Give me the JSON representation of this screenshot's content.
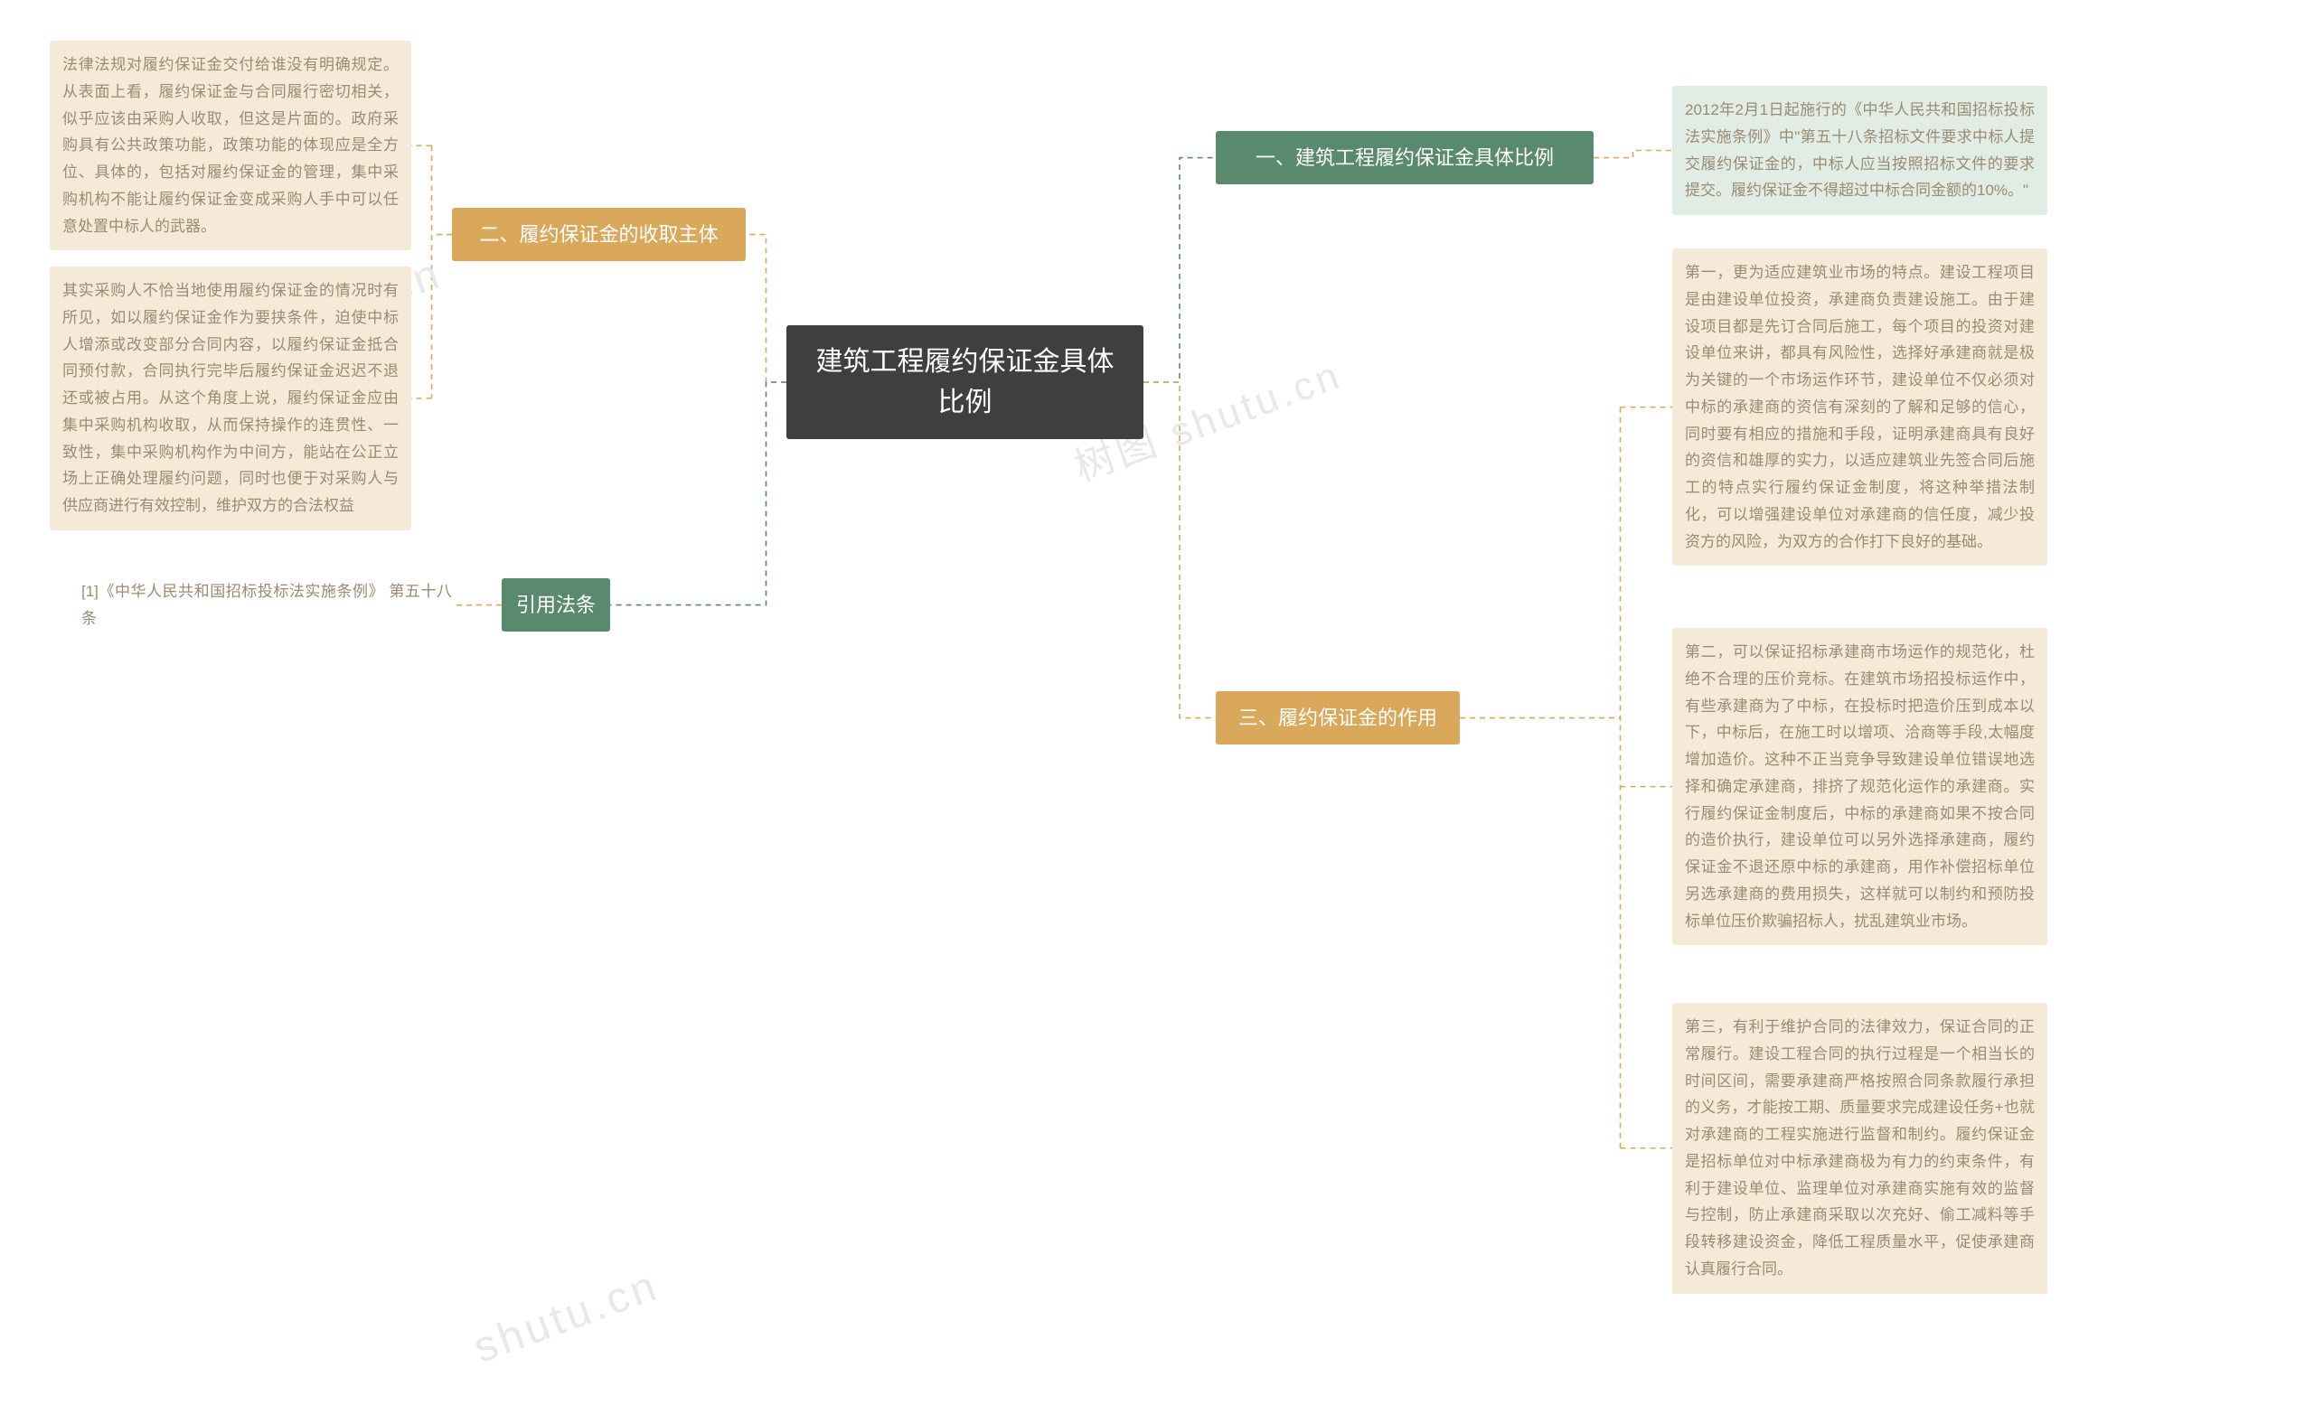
{
  "center": {
    "title": "建筑工程履约保证金具体\n比例"
  },
  "right": {
    "branch1": {
      "label": "一、建筑工程履约保证金具体比例",
      "detail": "2012年2月1日起施行的《中华人民共和国招标投标法实施条例》中\"第五十八条招标文件要求中标人提交履约保证金的，中标人应当按照招标文件的要求提交。履约保证金不得超过中标合同金额的10%。\""
    },
    "branch3": {
      "label": "三、履约保证金的作用",
      "detail1": "第一，更为适应建筑业市场的特点。建设工程项目是由建设单位投资，承建商负责建设施工。由于建设项目都是先订合同后施工，每个项目的投资对建设单位来讲，都具有风险性，选择好承建商就是极为关键的一个市场运作环节，建设单位不仅必须对中标的承建商的资信有深刻的了解和足够的信心，同时要有相应的措施和手段，证明承建商具有良好的资信和雄厚的实力，以适应建筑业先签合同后施工的特点实行履约保证金制度，将这种举措法制化，可以增强建设单位对承建商的信任度，减少投资方的风险，为双方的合作打下良好的基础。",
      "detail2": "第二，可以保证招标承建商市场运作的规范化，杜绝不合理的压价竞标。在建筑市场招投标运作中，有些承建商为了中标，在投标时把造价压到成本以下，中标后，在施工时以增项、洽商等手段,太幅度增加造价。这种不正当竞争导致建设单位错误地选择和确定承建商，排挤了规范化运作的承建商。实行履约保证金制度后，中标的承建商如果不按合同的造价执行，建设单位可以另外选择承建商，履约保证金不退还原中标的承建商，用作补偿招标单位另选承建商的费用损失，这样就可以制约和预防投标单位压价欺骗招标人，扰乱建筑业市场。",
      "detail3": "第三，有利于维护合同的法律效力，保证合同的正常履行。建设工程合同的执行过程是一个相当长的时间区间，需要承建商严格按照合同条款履行承担的义务，才能按工期、质量要求完成建设任务+也就对承建商的工程实施进行监督和制约。履约保证金是招标单位对中标承建商极为有力的约束条件，有利于建设单位、监理单位对承建商实施有效的监督与控制，防止承建商采取以次充好、偷工减料等手段转移建设资金，降低工程质量水平，促使承建商认真履行合同。"
    }
  },
  "left": {
    "branch2": {
      "label": "二、履约保证金的收取主体",
      "detail1": "法律法规对履约保证金交付给谁没有明确规定。从表面上看，履约保证金与合同履行密切相关，似乎应该由采购人收取，但这是片面的。政府采购具有公共政策功能，政策功能的体现应是全方位、具体的，包括对履约保证金的管理，集中采购机构不能让履约保证金变成采购人手中可以任意处置中标人的武器。",
      "detail2": "其实采购人不恰当地使用履约保证金的情况时有所见，如以履约保证金作为要挟条件，迫使中标人增添或改变部分合同内容，以履约保证金抵合同预付款，合同执行完毕后履约保证金迟迟不退还或被占用。从这个角度上说，履约保证金应由集中采购机构收取，从而保持操作的连贯性、一致性，集中采购机构作为中间方，能站在公正立场上正确处理履约问题，同时也便于对采购人与供应商进行有效控制，维护双方的合法权益"
    },
    "branch4": {
      "label": "引用法条",
      "detail": "[1]《中华人民共和国招标投标法实施条例》 第五十八条"
    }
  },
  "watermarks": {
    "wm1": "shutu.cn",
    "wm2": "树图 shutu.cn",
    "wm3": "shutu.cn"
  },
  "colors": {
    "center_bg": "#3f3f3f",
    "green_bg": "#5a8a6e",
    "orange_bg": "#d9a85a",
    "detail_orange_bg": "#f5ead8",
    "detail_green_bg": "#e1ece4",
    "detail_text": "#9a8b72",
    "line_green": "#5a8a6e",
    "line_orange": "#d9a85a"
  }
}
